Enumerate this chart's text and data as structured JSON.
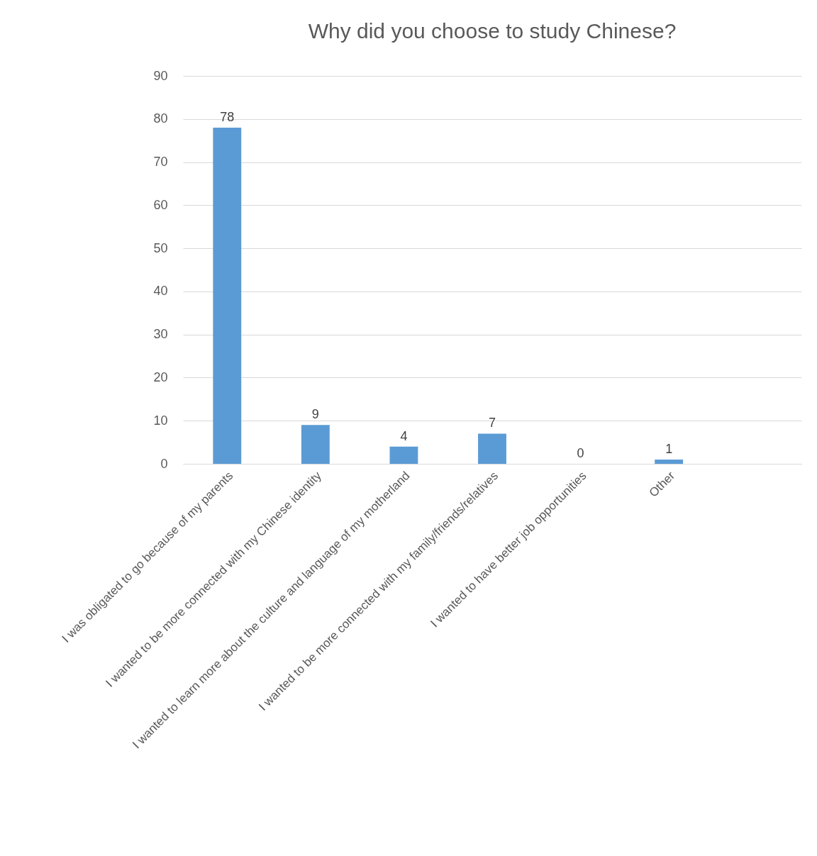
{
  "chart_data": {
    "type": "bar",
    "title": "Why did you choose to study Chinese?",
    "categories": [
      "I was obligated to go because of my parents",
      "I wanted to be more connected with my Chinese identity",
      "I wanted to learn more about the culture and language of my motherland",
      "I wanted to be more connected with my family/friends/relatives",
      "I wanted to have better job opportunities",
      "Other",
      null
    ],
    "values": [
      78,
      9,
      4,
      7,
      0,
      1,
      null
    ],
    "color": "#5b9bd5",
    "ylim": [
      0,
      90
    ],
    "yticks": [
      0,
      10,
      20,
      30,
      40,
      50,
      60,
      70,
      80,
      90
    ],
    "grid": "y",
    "data_labels": true
  }
}
